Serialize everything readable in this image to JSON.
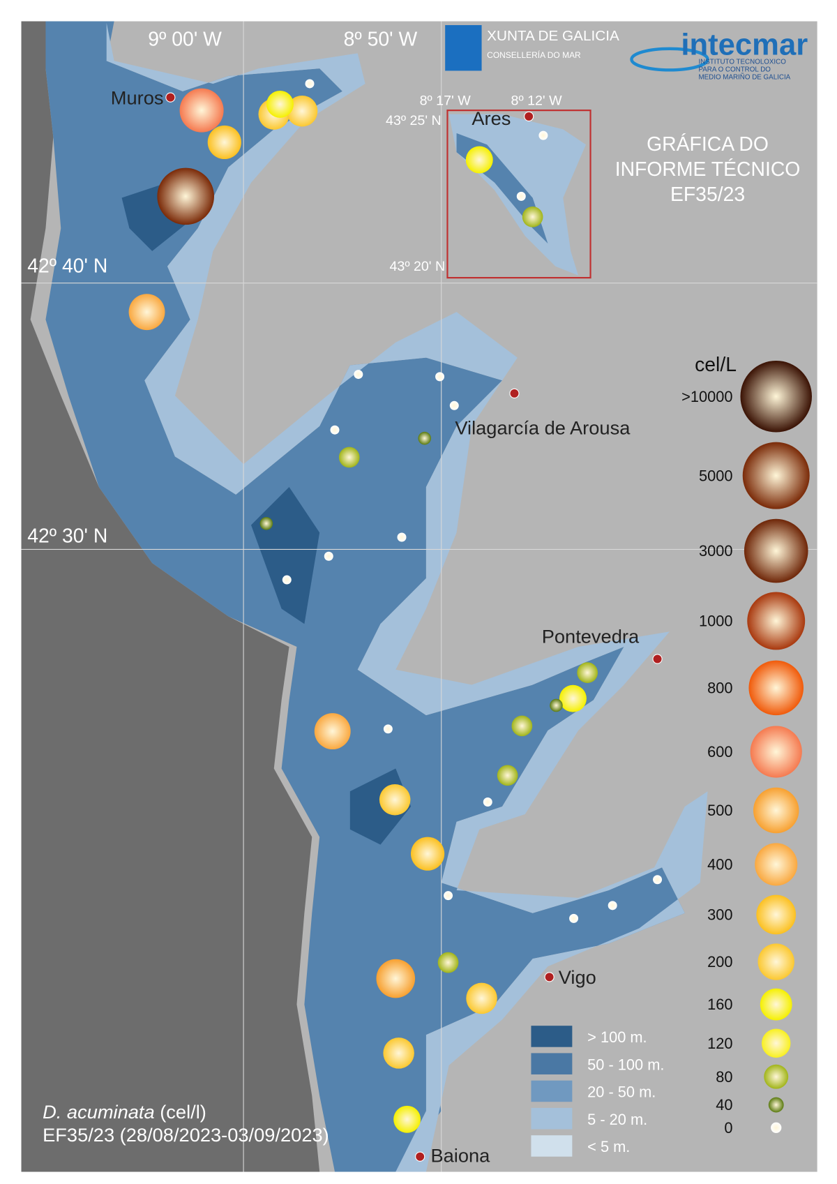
{
  "header": {
    "lon_labels": [
      "9º 00' W",
      "8º 50' W"
    ],
    "xunta": "XUNTA DE GALICIA",
    "xunta_sub": "CONSELLERÍA DO MAR",
    "intecmar": "intecmar",
    "intecmar_sub": [
      "INSTITUTO TECNOLOXICO",
      "PARA O CONTROL DO",
      "MEDIO MARIÑO DE GALICIA"
    ]
  },
  "title": [
    "GRÁFICA DO",
    "INFORME TÉCNICO",
    "EF35/23"
  ],
  "inset": {
    "lon_labels": [
      "8º 17' W",
      "8º 12' W"
    ],
    "lat_labels": [
      "43º 25' N",
      "43º 20' N"
    ],
    "town": "Ares"
  },
  "lat_labels": [
    "42º 40' N",
    "42º 30' N"
  ],
  "towns": [
    "Muros",
    "Vilagarcía de Arousa",
    "Pontevedra",
    "Vigo",
    "Baiona"
  ],
  "legend": {
    "title": "cel/L",
    "classes": [
      {
        "value": 10000,
        "label": ">10000"
      },
      5000,
      3000,
      1000,
      800,
      600,
      500,
      400,
      300,
      200,
      160,
      120,
      80,
      40,
      0
    ]
  },
  "depth_legend": [
    "> 100 m.",
    "50 - 100 m.",
    "20 - 50 m.",
    "5 - 20 m.",
    "< 5 m."
  ],
  "caption": {
    "species": "D. acuminata",
    "unit": "(cel/l)",
    "period": "EF35/23 (28/08/2023-03/09/2023)"
  },
  "stations": [
    600,
    300,
    5000,
    200,
    200,
    160,
    0,
    400,
    160,
    80,
    0,
    0,
    0,
    0,
    0,
    0,
    40,
    80,
    40,
    0,
    0,
    0,
    80,
    160,
    40,
    80,
    400,
    0,
    80,
    0,
    200,
    300,
    0,
    0,
    0,
    0,
    80,
    500,
    200,
    200,
    160
  ]
}
